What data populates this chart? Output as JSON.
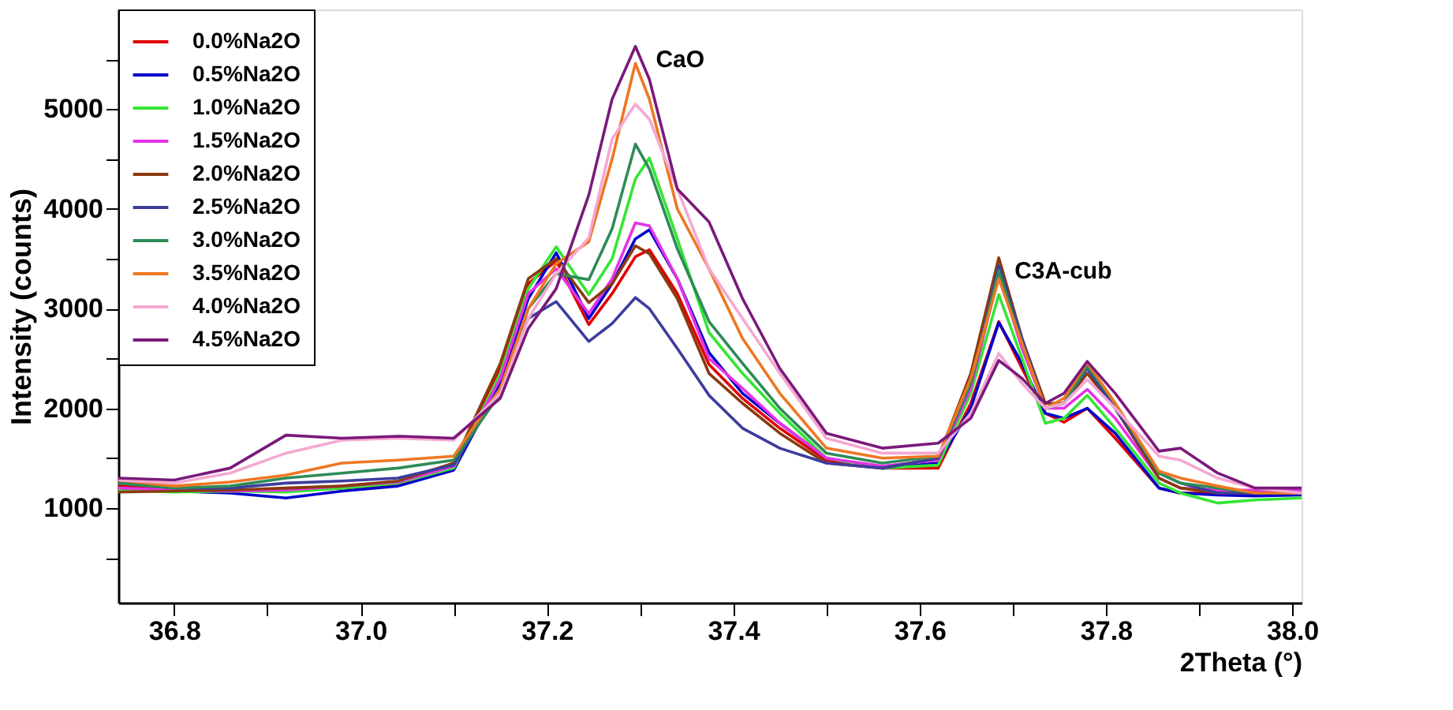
{
  "chart_data": {
    "type": "line",
    "xlabel": "2Theta (°)",
    "ylabel": "Intensity (counts)",
    "xlim": [
      36.74,
      38.01
    ],
    "ylim": [
      50,
      6000
    ],
    "xticks": [
      {
        "value": 36.8,
        "label": "36.8"
      },
      {
        "value": 36.9,
        "label": null
      },
      {
        "value": 37.0,
        "label": "37.0"
      },
      {
        "value": 37.1,
        "label": null
      },
      {
        "value": 37.2,
        "label": "37.2"
      },
      {
        "value": 37.3,
        "label": null
      },
      {
        "value": 37.4,
        "label": "37.4"
      },
      {
        "value": 37.5,
        "label": null
      },
      {
        "value": 37.6,
        "label": "37.6"
      },
      {
        "value": 37.7,
        "label": null
      },
      {
        "value": 37.8,
        "label": "37.8"
      },
      {
        "value": 37.9,
        "label": null
      },
      {
        "value": 38.0,
        "label": "38.0"
      }
    ],
    "yticks": [
      {
        "value": 500,
        "label": null
      },
      1000,
      {
        "value": 1500,
        "label": null
      },
      2000,
      {
        "value": 2500,
        "label": null
      },
      3000,
      {
        "value": 3500,
        "label": null
      },
      4000,
      {
        "value": 4500,
        "label": null
      },
      5000,
      {
        "value": 5500,
        "label": null
      }
    ],
    "legend": "top left",
    "line_style": "solid",
    "annotations": [
      {
        "text": "CaO",
        "x": 37.3,
        "y": 5630
      },
      {
        "text": "C3A-cub",
        "x": 37.685,
        "y": 3510
      }
    ],
    "x": [
      36.74,
      36.8,
      36.86,
      36.92,
      36.98,
      37.04,
      37.1,
      37.15,
      37.18,
      37.21,
      37.245,
      37.27,
      37.295,
      37.31,
      37.34,
      37.374,
      37.41,
      37.45,
      37.5,
      37.56,
      37.62,
      37.655,
      37.685,
      37.71,
      37.735,
      37.755,
      37.78,
      37.81,
      37.857,
      37.88,
      37.92,
      37.96,
      38.01
    ],
    "series": [
      {
        "name": "0.0%Na2O",
        "color": "#e00000",
        "values": [
          1220,
          1180,
          1180,
          1170,
          1200,
          1240,
          1420,
          2400,
          3250,
          3480,
          2840,
          3150,
          3520,
          3590,
          3150,
          2440,
          2100,
          1800,
          1480,
          1400,
          1400,
          2050,
          2870,
          2400,
          1950,
          1860,
          2000,
          1700,
          1200,
          1150,
          1150,
          1130,
          1150
        ]
      },
      {
        "name": "0.5%Na2O",
        "color": "#0000cc",
        "values": [
          1200,
          1170,
          1150,
          1100,
          1170,
          1220,
          1380,
          2250,
          3100,
          3560,
          2900,
          3250,
          3700,
          3790,
          3300,
          2560,
          2150,
          1850,
          1500,
          1400,
          1450,
          2000,
          2860,
          2450,
          1950,
          1900,
          2000,
          1750,
          1200,
          1150,
          1130,
          1120,
          1130
        ]
      },
      {
        "name": "1.0%Na2O",
        "color": "#33e633",
        "values": [
          1180,
          1160,
          1170,
          1160,
          1200,
          1250,
          1400,
          2350,
          3200,
          3620,
          3140,
          3500,
          4300,
          4510,
          3700,
          2760,
          2350,
          1950,
          1500,
          1400,
          1430,
          2150,
          3140,
          2500,
          1850,
          1900,
          2130,
          1800,
          1250,
          1150,
          1050,
          1080,
          1100
        ]
      },
      {
        "name": "1.5%Na2O",
        "color": "#e633e6",
        "values": [
          1200,
          1180,
          1170,
          1180,
          1220,
          1260,
          1420,
          2300,
          3150,
          3400,
          2950,
          3300,
          3860,
          3830,
          3300,
          2500,
          2200,
          1850,
          1500,
          1420,
          1480,
          2200,
          3350,
          2600,
          2000,
          2000,
          2190,
          1900,
          1300,
          1200,
          1180,
          1180,
          1180
        ]
      },
      {
        "name": "2.0%Na2O",
        "color": "#8b3a0f",
        "values": [
          1160,
          1170,
          1180,
          1200,
          1220,
          1270,
          1450,
          2450,
          3300,
          3500,
          3060,
          3250,
          3630,
          3550,
          3100,
          2350,
          2050,
          1750,
          1450,
          1400,
          1500,
          2350,
          3510,
          2700,
          2050,
          2050,
          2350,
          2000,
          1300,
          1200,
          1150,
          1150,
          1150
        ]
      },
      {
        "name": "2.5%Na2O",
        "color": "#3d3d9e",
        "values": [
          1250,
          1200,
          1200,
          1250,
          1270,
          1300,
          1430,
          2200,
          2900,
          3070,
          2670,
          2850,
          3110,
          3000,
          2600,
          2130,
          1800,
          1600,
          1450,
          1400,
          1500,
          2250,
          3430,
          2700,
          2000,
          2050,
          2400,
          2000,
          1350,
          1250,
          1150,
          1150,
          1150
        ]
      },
      {
        "name": "3.0%Na2O",
        "color": "#2e8b57",
        "values": [
          1250,
          1200,
          1220,
          1300,
          1350,
          1400,
          1480,
          2150,
          3000,
          3350,
          3290,
          3800,
          4650,
          4400,
          3600,
          2870,
          2450,
          2000,
          1550,
          1450,
          1520,
          2250,
          3380,
          2650,
          2000,
          2050,
          2420,
          2050,
          1350,
          1250,
          1200,
          1150,
          1150
        ]
      },
      {
        "name": "3.5%Na2O",
        "color": "#ee7722",
        "values": [
          1280,
          1220,
          1260,
          1330,
          1450,
          1480,
          1520,
          2200,
          3000,
          3450,
          3670,
          4500,
          5460,
          5100,
          4000,
          3400,
          2700,
          2150,
          1600,
          1500,
          1520,
          2300,
          3300,
          2650,
          2000,
          2100,
          2460,
          2050,
          1370,
          1300,
          1220,
          1150,
          1150
        ]
      },
      {
        "name": "4.0%Na2O",
        "color": "#f5a8d2",
        "values": [
          1280,
          1250,
          1350,
          1550,
          1680,
          1700,
          1680,
          2150,
          2900,
          3350,
          3710,
          4700,
          5050,
          4900,
          4200,
          3400,
          2900,
          2350,
          1700,
          1550,
          1550,
          1950,
          2550,
          2250,
          2000,
          2050,
          2290,
          2000,
          1520,
          1480,
          1300,
          1200,
          1150
        ]
      },
      {
        "name": "4.5%Na2O",
        "color": "#7a1a7a",
        "values": [
          1300,
          1280,
          1400,
          1730,
          1700,
          1720,
          1700,
          2100,
          2800,
          3200,
          4140,
          5100,
          5630,
          5300,
          4200,
          3870,
          3100,
          2400,
          1750,
          1600,
          1650,
          1900,
          2480,
          2300,
          2050,
          2150,
          2470,
          2150,
          1570,
          1600,
          1350,
          1200,
          1200
        ]
      }
    ]
  }
}
